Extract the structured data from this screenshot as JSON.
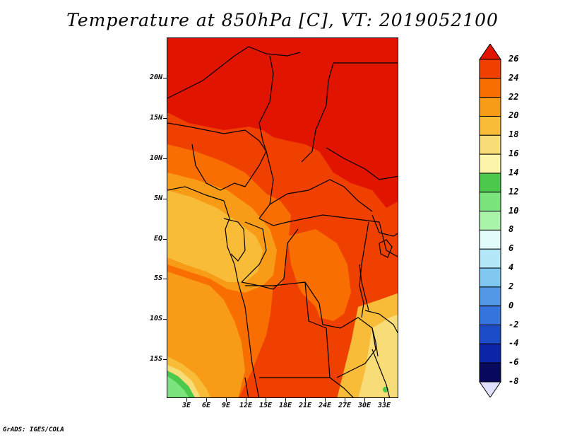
{
  "title": "Temperature at 850hPa [C], VT: 2019052100",
  "footer": "GrADS: IGES/COLA",
  "latitude_labels": [
    "20N",
    "15N",
    "10N",
    "5N",
    "EQ",
    "5S",
    "10S",
    "15S"
  ],
  "longitude_labels": [
    "3E",
    "6E",
    "9E",
    "12E",
    "15E",
    "18E",
    "21E",
    "24E",
    "27E",
    "30E",
    "33E"
  ],
  "colorbar": {
    "labels": [
      "26",
      "24",
      "22",
      "20",
      "18",
      "16",
      "14",
      "12",
      "10",
      "8",
      "6",
      "4",
      "2",
      "0",
      "-2",
      "-4",
      "-6",
      "-8"
    ],
    "colors": [
      "#e11400",
      "#f04000",
      "#f86e00",
      "#f89c18",
      "#f8bc38",
      "#f8dc78",
      "#fcf4a8",
      "#4cc84c",
      "#7ce47c",
      "#aaf4aa",
      "#e2fcfc",
      "#b4e8f8",
      "#80c8f0",
      "#5498e8",
      "#3474dc",
      "#1c4cc8",
      "#0c24a8",
      "#08085c"
    ],
    "above_color": "#e11400",
    "below_color": "#e0e0ff"
  },
  "map_colors": {
    "t24": "#e11400",
    "t22": "#f04000",
    "t20": "#f86e00",
    "t18": "#f89c18",
    "t16": "#f8bc38",
    "t14": "#f8dc78",
    "t12": "#fcf4a8",
    "t10": "#4cc84c",
    "t8": "#7ce47c",
    "border": "#000000"
  }
}
